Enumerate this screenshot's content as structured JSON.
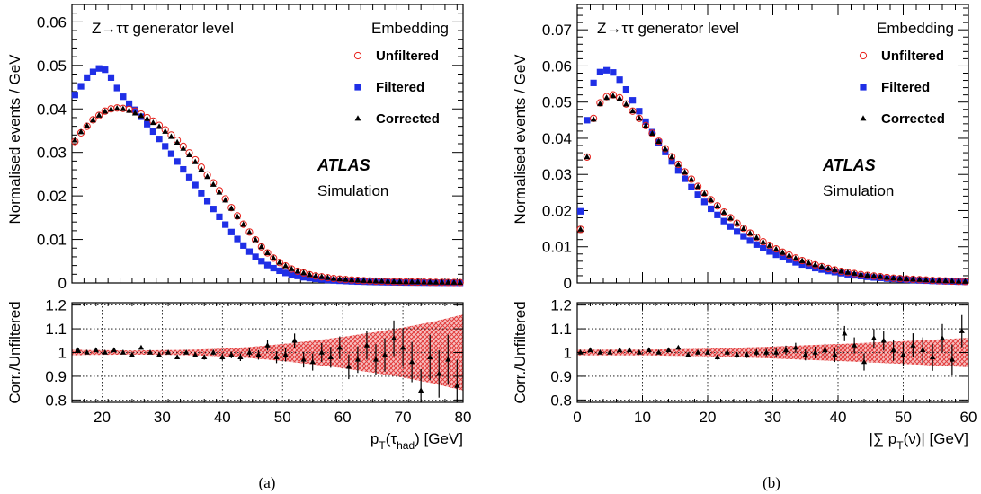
{
  "colors": {
    "unfiltered": "#e8201a",
    "filtered": "#1f2fe6",
    "corrected": "#000000",
    "band": "#e23a3a"
  },
  "chart_data": [
    {
      "type": "scatter",
      "caption": "(a)",
      "title": "Z→ττ generator level",
      "legend_title": "Embedding",
      "legend_position": "top-right",
      "atlas_label": "ATLAS",
      "atlas_sub": "Simulation",
      "xlabel_main": "p",
      "xlabel_sub": "T",
      "xlabel_rest": "(τ",
      "xlabel_sub2": "had",
      "xlabel_end": ") [GeV]",
      "ylabel": "Normalised events / GeV",
      "ratio_ylabel": "Corr./Unfiltered",
      "xlim": [
        15,
        80
      ],
      "ylim": [
        0,
        0.064
      ],
      "ratio_ylim": [
        0.79,
        1.21
      ],
      "xticks": [
        20,
        30,
        40,
        50,
        60,
        70,
        80
      ],
      "yticks": [
        0,
        0.01,
        0.02,
        0.03,
        0.04,
        0.05,
        0.06
      ],
      "ytick_labels": [
        "0",
        "0.01",
        "0.02",
        "0.03",
        "0.04",
        "0.05",
        "0.06"
      ],
      "ratio_yticks": [
        0.8,
        0.9,
        1,
        1.1,
        1.2
      ],
      "ratio_ytick_labels": [
        "0.8",
        "0.9",
        "1",
        "1.1",
        "1.2"
      ],
      "grid": true,
      "x": [
        15.5,
        16.5,
        17.5,
        18.5,
        19.5,
        20.5,
        21.5,
        22.5,
        23.5,
        24.5,
        25.5,
        26.5,
        27.5,
        28.5,
        29.5,
        30.5,
        31.5,
        32.5,
        33.5,
        34.5,
        35.5,
        36.5,
        37.5,
        38.5,
        39.5,
        40.5,
        41.5,
        42.5,
        43.5,
        44.5,
        45.5,
        46.5,
        47.5,
        48.5,
        49.5,
        50.5,
        51.5,
        52.5,
        53.5,
        54.5,
        55.5,
        56.5,
        57.5,
        58.5,
        59.5,
        60.5,
        61.5,
        62.5,
        63.5,
        64.5,
        65.5,
        66.5,
        67.5,
        68.5,
        69.5,
        70.5,
        71.5,
        72.5,
        73.5,
        74.5,
        75.5,
        76.5,
        77.5,
        78.5,
        79.5
      ],
      "series": [
        {
          "name": "Unfiltered",
          "marker": "open-circle",
          "values": [
            0.0325,
            0.0345,
            0.036,
            0.0375,
            0.0385,
            0.0395,
            0.04,
            0.0402,
            0.0401,
            0.0399,
            0.0395,
            0.0388,
            0.038,
            0.0372,
            0.0362,
            0.0352,
            0.034,
            0.0328,
            0.0314,
            0.0299,
            0.0283,
            0.0266,
            0.0248,
            0.023,
            0.0212,
            0.0193,
            0.0173,
            0.0154,
            0.0135,
            0.0117,
            0.0099,
            0.0083,
            0.0069,
            0.0057,
            0.0047,
            0.0039,
            0.0032,
            0.0027,
            0.0023,
            0.0019,
            0.0016,
            0.0014,
            0.0012,
            0.001,
            0.00088,
            0.00077,
            0.00068,
            0.0006,
            0.00053,
            0.00047,
            0.00042,
            0.00038,
            0.00034,
            0.0003,
            0.00027,
            0.00024,
            0.00022,
            0.0002,
            0.00018,
            0.00016,
            0.00014,
            0.00013,
            0.00012,
            0.0001,
            9e-05
          ]
        },
        {
          "name": "Filtered",
          "marker": "filled-square",
          "values": [
            0.0432,
            0.0452,
            0.0472,
            0.0485,
            0.0493,
            0.049,
            0.0472,
            0.0448,
            0.0428,
            0.0412,
            0.0398,
            0.0382,
            0.0365,
            0.0348,
            0.0331,
            0.0314,
            0.0297,
            0.0279,
            0.0261,
            0.0243,
            0.0225,
            0.0206,
            0.0188,
            0.017,
            0.0152,
            0.0134,
            0.0117,
            0.0101,
            0.0086,
            0.0072,
            0.006,
            0.005,
            0.0041,
            0.0034,
            0.0028,
            0.0023,
            0.0019,
            0.0016,
            0.0013,
            0.0011,
            0.00095,
            0.0008,
            0.00068,
            0.00058,
            0.0005,
            0.00043,
            0.00037,
            0.00032,
            0.00028,
            0.00024,
            0.00021,
            0.00018,
            0.00016,
            0.00014,
            0.00012,
            0.0001,
            9e-05,
            8e-05,
            7e-05,
            6e-05,
            5e-05,
            5e-05,
            4e-05,
            4e-05,
            3e-05
          ]
        },
        {
          "name": "Corrected",
          "marker": "filled-triangle",
          "values": [
            0.0328,
            0.0347,
            0.0361,
            0.0374,
            0.0385,
            0.0394,
            0.0399,
            0.0401,
            0.04,
            0.0396,
            0.039,
            0.0384,
            0.0377,
            0.0368,
            0.0359,
            0.0348,
            0.0336,
            0.0323,
            0.0309,
            0.0294,
            0.0278,
            0.0261,
            0.0244,
            0.0226,
            0.0208,
            0.019,
            0.0171,
            0.0152,
            0.0134,
            0.0116,
            0.0099,
            0.0083,
            0.0069,
            0.0057,
            0.0047,
            0.0039,
            0.0032,
            0.0027,
            0.0023,
            0.0019,
            0.0016,
            0.0014,
            0.0012,
            0.001,
            0.00088,
            0.00077,
            0.00068,
            0.0006,
            0.00053,
            0.00047,
            0.00042,
            0.00038,
            0.00034,
            0.0003,
            0.00027,
            0.00024,
            0.00022,
            0.0002,
            0.00018,
            0.00016,
            0.00014,
            0.00013,
            0.00012,
            0.0001,
            9e-05
          ]
        }
      ],
      "ratio": {
        "x": [
          16,
          17.5,
          19,
          20.5,
          22,
          23.5,
          25,
          26.5,
          28,
          29.5,
          31,
          32.5,
          34,
          35.5,
          37,
          38.5,
          40,
          41.5,
          43,
          44.5,
          46,
          47.5,
          49,
          50.5,
          52,
          53.5,
          55,
          56.5,
          58,
          59.5,
          61,
          62.5,
          64,
          65.5,
          67,
          68.5,
          70,
          71.5,
          73,
          74.5,
          76,
          77.5,
          79
        ],
        "values": [
          1.01,
          1.0,
          1.01,
          1.0,
          1.01,
          1.0,
          0.99,
          1.02,
          1.0,
          0.99,
          1.0,
          0.98,
          1.0,
          0.99,
          0.98,
          1.0,
          0.98,
          0.99,
          0.98,
          1.0,
          0.99,
          1.03,
          0.98,
          0.99,
          1.05,
          0.97,
          0.96,
          1.0,
          0.98,
          1.02,
          0.94,
          0.97,
          1.03,
          0.97,
          0.99,
          1.06,
          1.02,
          0.96,
          0.84,
          0.98,
          0.91,
          0.97,
          0.86
        ],
        "errors": [
          0.005,
          0.005,
          0.005,
          0.005,
          0.005,
          0.005,
          0.005,
          0.005,
          0.006,
          0.006,
          0.006,
          0.007,
          0.008,
          0.009,
          0.01,
          0.011,
          0.012,
          0.014,
          0.016,
          0.018,
          0.02,
          0.022,
          0.025,
          0.028,
          0.03,
          0.033,
          0.036,
          0.04,
          0.044,
          0.048,
          0.052,
          0.056,
          0.06,
          0.065,
          0.07,
          0.075,
          0.08,
          0.085,
          0.09,
          0.095,
          0.1,
          0.105,
          0.11
        ],
        "band_x": [
          15,
          20,
          25,
          30,
          35,
          40,
          45,
          50,
          55,
          60,
          65,
          70,
          75,
          80
        ],
        "band_halfwidth": [
          0.012,
          0.01,
          0.009,
          0.01,
          0.012,
          0.016,
          0.024,
          0.036,
          0.05,
          0.066,
          0.085,
          0.105,
          0.13,
          0.16
        ]
      }
    },
    {
      "type": "scatter",
      "caption": "(b)",
      "title": "Z→ττ generator level",
      "legend_title": "Embedding",
      "legend_position": "top-right",
      "atlas_label": "ATLAS",
      "atlas_sub": "Simulation",
      "xlabel_main": "|∑ p",
      "xlabel_sub": "T",
      "xlabel_rest": "(ν)|",
      "xlabel_sub2": "",
      "xlabel_end": " [GeV]",
      "ylabel": "Normalised events / GeV",
      "ratio_ylabel": "Corr./Unfiltered",
      "xlim": [
        0,
        60
      ],
      "ylim": [
        0,
        0.077
      ],
      "ratio_ylim": [
        0.79,
        1.21
      ],
      "xticks": [
        0,
        10,
        20,
        30,
        40,
        50,
        60
      ],
      "yticks": [
        0,
        0.01,
        0.02,
        0.03,
        0.04,
        0.05,
        0.06,
        0.07
      ],
      "ytick_labels": [
        "0",
        "0.01",
        "0.02",
        "0.03",
        "0.04",
        "0.05",
        "0.06",
        "0.07"
      ],
      "ratio_yticks": [
        0.8,
        0.9,
        1,
        1.1,
        1.2
      ],
      "ratio_ytick_labels": [
        "0.8",
        "0.9",
        "1",
        "1.1",
        "1.2"
      ],
      "grid": true,
      "x": [
        0.5,
        1.5,
        2.5,
        3.5,
        4.5,
        5.5,
        6.5,
        7.5,
        8.5,
        9.5,
        10.5,
        11.5,
        12.5,
        13.5,
        14.5,
        15.5,
        16.5,
        17.5,
        18.5,
        19.5,
        20.5,
        21.5,
        22.5,
        23.5,
        24.5,
        25.5,
        26.5,
        27.5,
        28.5,
        29.5,
        30.5,
        31.5,
        32.5,
        33.5,
        34.5,
        35.5,
        36.5,
        37.5,
        38.5,
        39.5,
        40.5,
        41.5,
        42.5,
        43.5,
        44.5,
        45.5,
        46.5,
        47.5,
        48.5,
        49.5,
        50.5,
        51.5,
        52.5,
        53.5,
        54.5,
        55.5,
        56.5,
        57.5,
        58.5,
        59.5
      ],
      "series": [
        {
          "name": "Unfiltered",
          "marker": "open-circle",
          "values": [
            0.0148,
            0.0348,
            0.0455,
            0.0498,
            0.0515,
            0.052,
            0.0512,
            0.0495,
            0.0475,
            0.0455,
            0.0435,
            0.0414,
            0.0392,
            0.0371,
            0.0349,
            0.0328,
            0.0307,
            0.0287,
            0.0267,
            0.0248,
            0.023,
            0.0213,
            0.0196,
            0.018,
            0.0165,
            0.0151,
            0.0138,
            0.0126,
            0.0114,
            0.0104,
            0.0094,
            0.0085,
            0.0077,
            0.0069,
            0.0062,
            0.0056,
            0.005,
            0.0045,
            0.004,
            0.0036,
            0.0032,
            0.0029,
            0.0026,
            0.0023,
            0.0021,
            0.0019,
            0.0017,
            0.0015,
            0.0013,
            0.0012,
            0.0011,
            0.001,
            0.0009,
            0.0008,
            0.0007,
            0.00062,
            0.00055,
            0.00049,
            0.00044,
            0.00039
          ]
        },
        {
          "name": "Filtered",
          "marker": "filled-square",
          "values": [
            0.0198,
            0.045,
            0.0553,
            0.0583,
            0.0588,
            0.0582,
            0.0562,
            0.0535,
            0.0505,
            0.0475,
            0.0446,
            0.0417,
            0.0389,
            0.0362,
            0.0336,
            0.0311,
            0.0288,
            0.0265,
            0.0244,
            0.0224,
            0.0205,
            0.0188,
            0.0171,
            0.0156,
            0.0142,
            0.0129,
            0.0117,
            0.0106,
            0.0096,
            0.0087,
            0.0078,
            0.0071,
            0.0064,
            0.0057,
            0.0051,
            0.0046,
            0.0041,
            0.0037,
            0.0033,
            0.003,
            0.0027,
            0.0024,
            0.0021,
            0.0019,
            0.0017,
            0.0015,
            0.0014,
            0.0012,
            0.0011,
            0.001,
            0.0009,
            0.0008,
            0.0007,
            0.00063,
            0.00056,
            0.0005,
            0.00045,
            0.0004,
            0.00036,
            0.00032
          ]
        },
        {
          "name": "Corrected",
          "marker": "filled-triangle",
          "values": [
            0.0148,
            0.0348,
            0.0452,
            0.0495,
            0.0512,
            0.0517,
            0.051,
            0.0494,
            0.0475,
            0.0455,
            0.0434,
            0.0413,
            0.0391,
            0.037,
            0.0348,
            0.0327,
            0.0306,
            0.0286,
            0.0266,
            0.0247,
            0.0229,
            0.0212,
            0.0195,
            0.0179,
            0.0164,
            0.015,
            0.0137,
            0.0125,
            0.0113,
            0.0103,
            0.0093,
            0.0084,
            0.0076,
            0.0068,
            0.0061,
            0.0055,
            0.005,
            0.0045,
            0.004,
            0.0036,
            0.0032,
            0.0029,
            0.0026,
            0.0023,
            0.0021,
            0.0019,
            0.0017,
            0.0015,
            0.0013,
            0.0012,
            0.0011,
            0.001,
            0.0009,
            0.0008,
            0.0007,
            0.00062,
            0.00055,
            0.00049,
            0.00044,
            0.00039
          ]
        }
      ],
      "ratio": {
        "x": [
          0.5,
          2,
          3.5,
          5,
          6.5,
          8,
          9.5,
          11,
          12.5,
          14,
          15.5,
          17,
          18.5,
          20,
          21.5,
          23,
          24.5,
          26,
          27.5,
          29,
          30.5,
          32,
          33.5,
          35,
          36.5,
          38,
          39.5,
          41,
          42.5,
          44,
          45.5,
          47,
          48.5,
          50,
          51.5,
          53,
          54.5,
          56,
          57.5,
          59
        ],
        "values": [
          1.0,
          1.01,
          1.0,
          1.0,
          1.01,
          1.01,
          1.0,
          1.01,
          1.0,
          1.01,
          1.02,
          0.99,
          1.0,
          1.0,
          0.98,
          1.0,
          0.99,
          0.99,
          1.0,
          1.0,
          1.0,
          1.01,
          1.02,
          0.99,
          1.0,
          1.01,
          0.99,
          1.08,
          1.03,
          0.96,
          1.06,
          1.05,
          1.01,
          0.99,
          1.03,
          1.01,
          0.98,
          1.06,
          0.97,
          1.09
        ],
        "errors": [
          0.005,
          0.005,
          0.005,
          0.005,
          0.005,
          0.005,
          0.005,
          0.005,
          0.006,
          0.006,
          0.006,
          0.007,
          0.008,
          0.009,
          0.01,
          0.011,
          0.012,
          0.013,
          0.014,
          0.015,
          0.017,
          0.019,
          0.021,
          0.023,
          0.025,
          0.027,
          0.03,
          0.032,
          0.034,
          0.036,
          0.039,
          0.042,
          0.045,
          0.048,
          0.051,
          0.054,
          0.057,
          0.06,
          0.064,
          0.068
        ],
        "band_x": [
          0,
          10,
          20,
          30,
          40,
          50,
          60
        ],
        "band_halfwidth": [
          0.012,
          0.012,
          0.016,
          0.025,
          0.036,
          0.048,
          0.062
        ]
      }
    }
  ]
}
